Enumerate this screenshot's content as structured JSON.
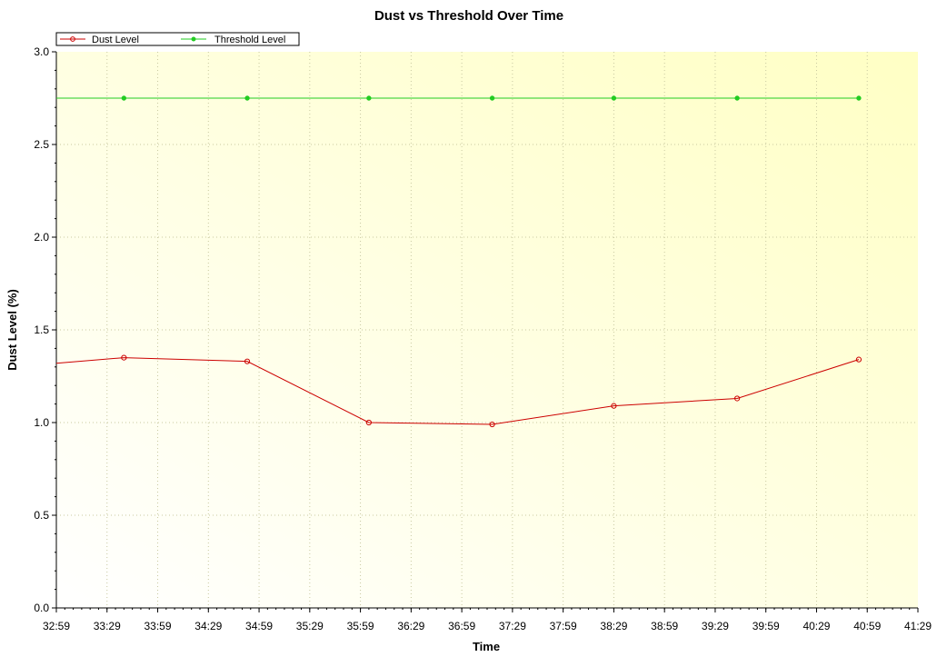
{
  "chart_data": {
    "type": "line",
    "title": "Dust vs Threshold Over Time",
    "xlabel": "Time",
    "ylabel": "Dust Level (%)",
    "x_tick_labels": [
      "32:59",
      "33:29",
      "33:59",
      "34:29",
      "34:59",
      "35:29",
      "35:59",
      "36:29",
      "36:59",
      "37:29",
      "37:59",
      "38:29",
      "38:59",
      "39:29",
      "39:59",
      "40:29",
      "40:59",
      "41:29"
    ],
    "y_tick_labels": [
      "0.0",
      "0.5",
      "1.0",
      "1.5",
      "2.0",
      "2.5",
      "3.0"
    ],
    "xlim": [
      "32:59",
      "41:29"
    ],
    "ylim": [
      0,
      3.0
    ],
    "grid": true,
    "legend_position": "top-left",
    "background": "yellow gradient",
    "series": [
      {
        "name": "Dust Level",
        "color": "#cc0000",
        "marker": "circle",
        "x": [
          "32:59",
          "33:39",
          "34:52",
          "36:04",
          "37:17",
          "38:29",
          "39:42",
          "40:54"
        ],
        "values": [
          1.32,
          1.35,
          1.33,
          1.0,
          0.99,
          1.09,
          1.13,
          1.34
        ]
      },
      {
        "name": "Threshold Level",
        "color": "#22cc22",
        "marker": "circle",
        "x": [
          "32:59",
          "33:39",
          "34:52",
          "36:04",
          "37:17",
          "38:29",
          "39:42",
          "40:54"
        ],
        "values": [
          2.75,
          2.75,
          2.75,
          2.75,
          2.75,
          2.75,
          2.75,
          2.75
        ]
      }
    ]
  }
}
